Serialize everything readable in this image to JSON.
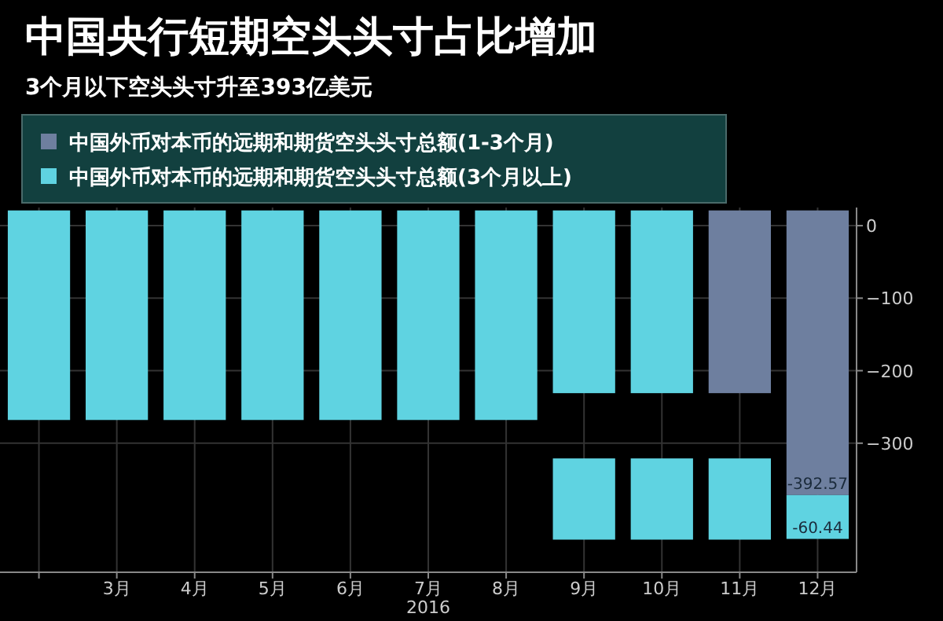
{
  "chart_data": {
    "type": "bar",
    "title": "中国央行短期空头头寸占比增加",
    "subtitle": "3个月以下空头头寸升至393亿美元",
    "categories": [
      null,
      "3月",
      "4月",
      "5月",
      "6月",
      "7月",
      "8月",
      "9月",
      "10月",
      "11月",
      "12月"
    ],
    "series": [
      {
        "name": "中国外币对本币的远期和期货空头头寸总额(1-3个月)",
        "color": "#6e7f9f",
        "base": [
          null,
          null,
          null,
          null,
          null,
          null,
          null,
          null,
          null,
          21,
          21
        ],
        "values": [
          null,
          null,
          null,
          null,
          null,
          null,
          null,
          null,
          null,
          -252,
          -392.57
        ],
        "value_labels": [
          null,
          null,
          null,
          null,
          null,
          null,
          null,
          null,
          null,
          null,
          "-392.57"
        ]
      },
      {
        "name": "中国外币对本币的远期和期货空头头寸总额(3个月以上)",
        "color": "#5fd3e1",
        "base": [
          21,
          21,
          21,
          21,
          21,
          21,
          21,
          21,
          21,
          null,
          -371.57
        ],
        "values": [
          -289,
          -289,
          -289,
          -289,
          -289,
          -289,
          -289,
          -252,
          -252,
          null,
          -60.44
        ],
        "value_labels": [
          null,
          null,
          null,
          null,
          null,
          null,
          null,
          null,
          null,
          null,
          "-60.44"
        ]
      },
      {
        "color": "#5fd3e1",
        "base": [
          null,
          null,
          null,
          null,
          null,
          null,
          null,
          -321,
          -321,
          -321,
          null
        ],
        "values": [
          null,
          null,
          null,
          null,
          null,
          null,
          null,
          -112,
          -112,
          -112,
          null
        ]
      }
    ],
    "ylim": [
      -478,
      25
    ],
    "yticks": [
      0,
      -100,
      -200,
      -300
    ],
    "grid": true,
    "legend": "top left",
    "annotations": [
      "2016"
    ]
  }
}
